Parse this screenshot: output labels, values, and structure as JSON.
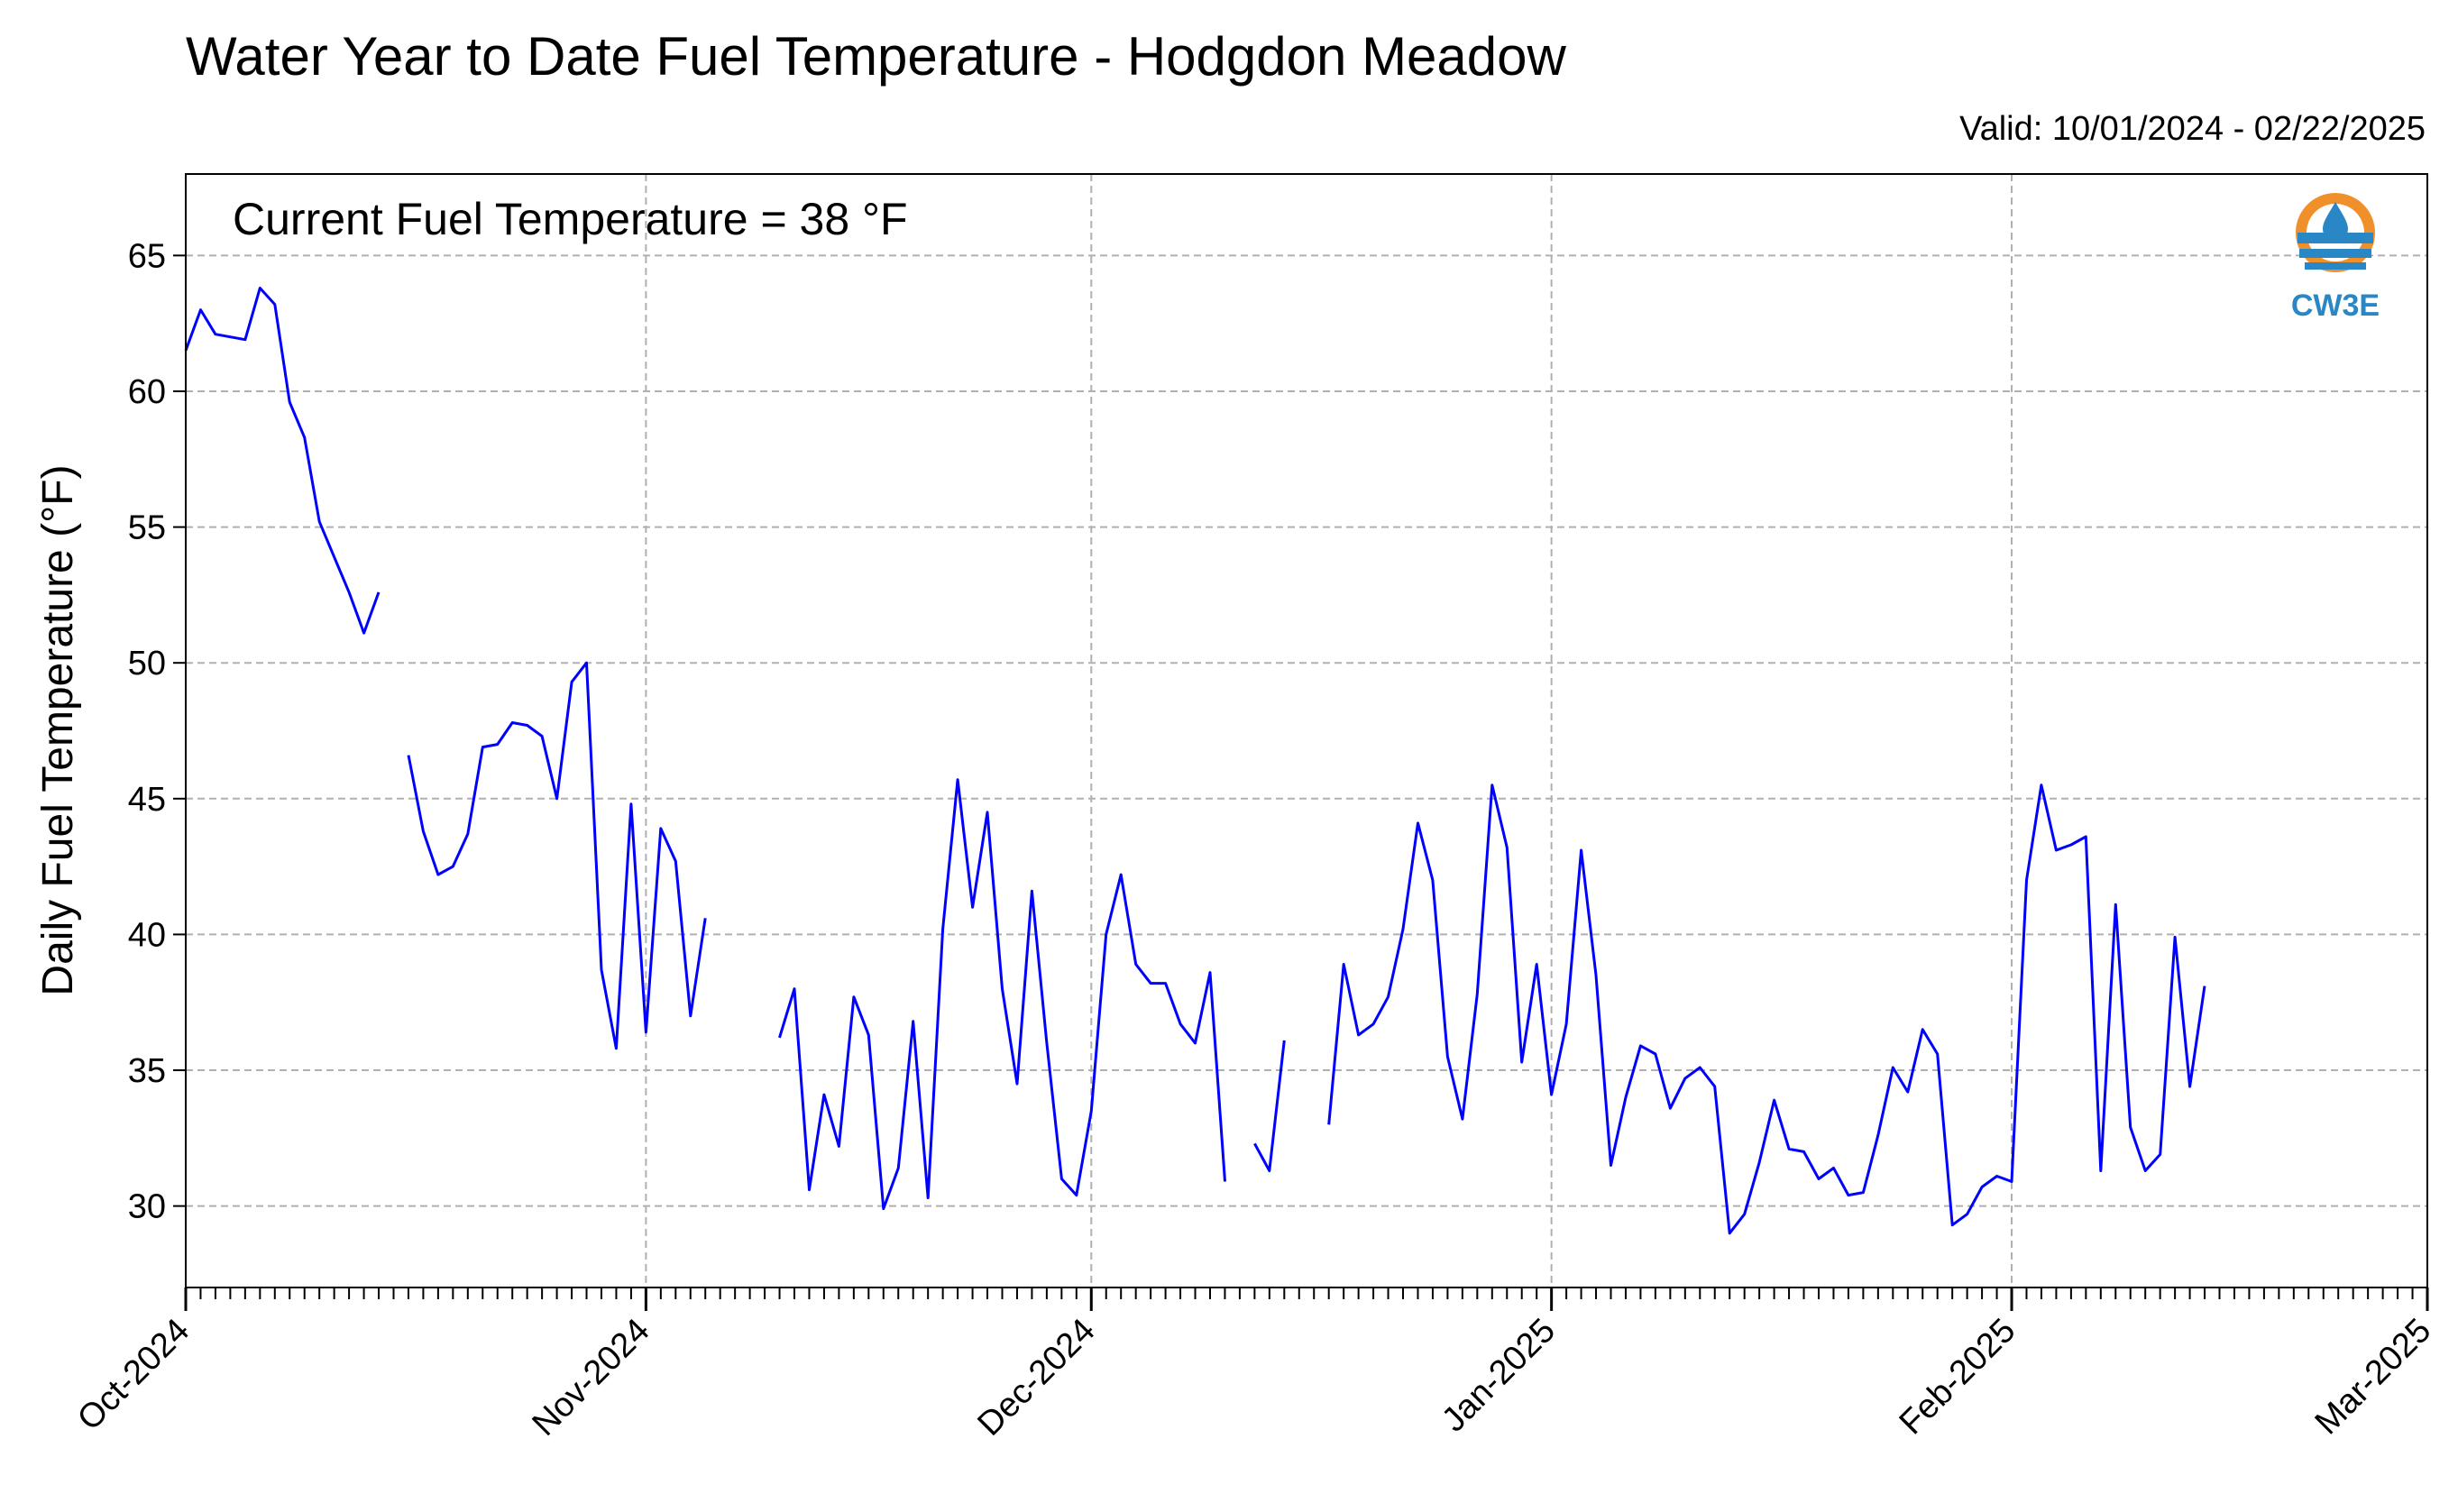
{
  "header": {
    "title": "Water Year to Date Fuel Temperature - Hodgdon Meadow",
    "valid": "Valid: 10/01/2024 - 02/22/2025"
  },
  "logo": {
    "text": "CW3E",
    "icon": "water-drop-icon",
    "colors": {
      "orange": "#f0902a",
      "blue": "#2a87c6"
    }
  },
  "chart_data": {
    "type": "line",
    "title": "Water Year to Date Fuel Temperature - Hodgdon Meadow",
    "subtitle": "Valid: 10/01/2024 - 02/22/2025",
    "xlabel": "",
    "ylabel": "Daily Fuel Temperature (°F)",
    "annotation": "Current Fuel Temperature = 38 °F",
    "xlim": [
      "2024-10-01",
      "2025-03-01"
    ],
    "ylim": [
      27,
      68
    ],
    "yticks": [
      30,
      35,
      40,
      45,
      50,
      55,
      60,
      65
    ],
    "xticks": [
      {
        "date": "2024-10-01",
        "label": "Oct-2024"
      },
      {
        "date": "2024-11-01",
        "label": "Nov-2024"
      },
      {
        "date": "2024-12-01",
        "label": "Dec-2024"
      },
      {
        "date": "2025-01-01",
        "label": "Jan-2025"
      },
      {
        "date": "2025-02-01",
        "label": "Feb-2025"
      },
      {
        "date": "2025-03-01",
        "label": "Mar-2025"
      }
    ],
    "grid": true,
    "line_color": "#0000ff",
    "series": [
      {
        "start_date": "2024-10-01",
        "values": [
          61.5,
          63.0,
          62.1,
          62.0,
          61.9,
          63.8,
          63.2,
          59.6,
          58.3,
          55.2,
          53.9,
          52.6,
          51.1,
          52.6,
          null,
          46.6,
          43.8,
          42.2,
          42.5,
          43.7,
          46.9,
          47.0,
          47.8,
          47.7,
          47.3,
          45.0,
          49.3,
          50.0,
          38.7,
          35.8,
          44.8,
          36.4,
          43.9,
          42.7,
          37.0,
          40.6,
          null,
          null,
          null,
          null,
          36.2,
          38.0,
          30.6,
          34.1,
          32.2,
          37.7,
          36.3,
          29.9,
          31.4,
          36.8,
          30.3,
          40.2,
          45.7,
          41.0,
          44.5,
          38.0,
          34.5,
          41.6,
          36.0,
          31.0,
          30.4,
          33.5,
          40.0,
          42.2,
          38.9,
          38.2,
          38.2,
          36.7,
          36.0,
          38.6,
          30.9,
          null,
          32.3,
          31.3,
          36.1,
          null,
          null,
          33.0,
          38.9,
          36.3,
          36.7,
          37.7,
          40.2,
          44.1,
          42.0,
          35.5,
          33.2,
          37.8,
          45.5,
          43.2,
          35.3,
          38.9,
          34.1,
          36.7,
          43.1,
          38.5,
          31.5,
          34.0,
          35.9,
          35.6,
          33.6,
          34.7,
          35.1,
          34.4,
          29.0,
          29.7,
          31.6,
          33.9,
          32.1,
          32.0,
          31.0,
          31.4,
          30.4,
          30.5,
          32.6,
          35.1,
          34.2,
          36.5,
          35.6,
          29.3,
          29.7,
          30.7,
          31.1,
          30.9,
          42.0,
          45.5,
          43.1,
          43.3,
          43.6,
          31.3,
          41.1,
          32.9,
          31.3,
          31.9,
          39.9,
          34.4,
          38.1
        ]
      }
    ]
  }
}
